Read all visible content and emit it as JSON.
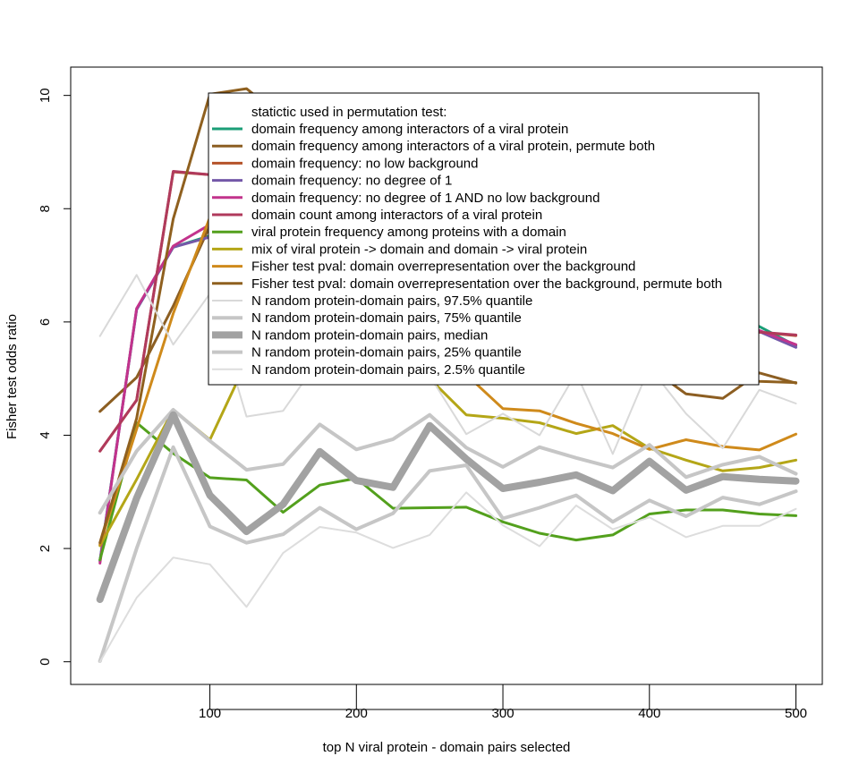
{
  "chart_data": {
    "type": "line",
    "title": "",
    "xlabel": "top N viral protein - domain pairs selected",
    "ylabel": "Fisher test odds ratio",
    "xlim": [
      5,
      518
    ],
    "ylim": [
      -0.4,
      10.5
    ],
    "xticks": [
      100,
      200,
      300,
      400,
      500
    ],
    "xtick_labels": [
      "100",
      "200",
      "300",
      "400",
      "500"
    ],
    "yticks": [
      0,
      2,
      4,
      6,
      8,
      10
    ],
    "ytick_labels": [
      "0",
      "2",
      "4",
      "6",
      "8",
      "10"
    ],
    "grid": false,
    "legend": {
      "placement": "top",
      "title": "statictic used in permutation test:"
    },
    "x": [
      25,
      50,
      75,
      100,
      125,
      150,
      175,
      200,
      225,
      250,
      275,
      300,
      325,
      350,
      375,
      400,
      425,
      450,
      475,
      500
    ],
    "series": [
      {
        "name": "domain frequency among interactors of a viral protein",
        "color": "#1b9e77",
        "width": 3,
        "values": [
          1.78,
          6.22,
          7.32,
          7.52,
          7.5,
          7.2,
          7.1,
          7.0,
          6.9,
          6.85,
          6.8,
          6.7,
          6.6,
          6.5,
          6.4,
          6.3,
          6.2,
          6.05,
          5.92,
          5.58
        ]
      },
      {
        "name": "domain frequency among interactors of a viral protein, permute both",
        "color": "#8c5e22",
        "width": 3,
        "values": [
          4.42,
          5.02,
          6.28,
          7.7,
          7.5,
          7.2,
          7.0,
          6.8,
          6.6,
          6.4,
          6.2,
          6.0,
          5.8,
          5.6,
          5.4,
          5.2,
          4.73,
          4.65,
          5.1,
          4.92
        ]
      },
      {
        "name": "domain frequency: no low background",
        "color": "#b5532a",
        "width": 3,
        "values": [
          3.72,
          4.62,
          8.65,
          8.6,
          8.5,
          8.3,
          8.1,
          7.9,
          7.7,
          7.5,
          7.3,
          7.1,
          6.9,
          6.7,
          6.5,
          6.3,
          6.1,
          5.9,
          5.82,
          5.76
        ]
      },
      {
        "name": "domain frequency: no degree of 1",
        "color": "#7458a8",
        "width": 3,
        "values": [
          1.78,
          6.22,
          7.32,
          7.5,
          7.4,
          7.2,
          7.1,
          7.0,
          6.9,
          6.8,
          6.7,
          6.6,
          6.5,
          6.4,
          6.3,
          6.2,
          6.05,
          5.92,
          5.83,
          5.55
        ]
      },
      {
        "name": "domain frequency: no degree of 1 AND no low background",
        "color": "#c2338c",
        "width": 3,
        "values": [
          1.74,
          6.24,
          7.34,
          7.72,
          7.6,
          7.4,
          7.2,
          7.0,
          6.9,
          6.8,
          6.7,
          6.6,
          6.5,
          6.4,
          6.3,
          6.2,
          6.1,
          6.0,
          5.85,
          5.6
        ]
      },
      {
        "name": "domain count among interactors of a viral protein",
        "color": "#b03a5c",
        "width": 3,
        "values": [
          3.72,
          4.62,
          8.66,
          8.6,
          8.5,
          8.3,
          8.1,
          7.9,
          7.7,
          7.5,
          7.3,
          7.1,
          6.9,
          6.7,
          6.5,
          6.3,
          6.1,
          5.9,
          5.82,
          5.77
        ]
      },
      {
        "name": "viral protein frequency among proteins with a domain",
        "color": "#53a01d",
        "width": 3,
        "values": [
          1.8,
          4.22,
          3.68,
          3.25,
          3.21,
          2.64,
          3.12,
          3.24,
          2.71,
          2.72,
          2.73,
          2.47,
          2.27,
          2.15,
          2.24,
          2.61,
          2.68,
          2.68,
          2.61,
          2.58
        ]
      },
      {
        "name": "mix of viral protein -> domain and domain -> viral protein",
        "color": "#b4a617",
        "width": 3,
        "values": [
          2.05,
          3.22,
          4.45,
          3.92,
          5.3,
          5.6,
          5.7,
          5.8,
          5.5,
          5.0,
          4.36,
          4.3,
          4.22,
          4.03,
          4.17,
          3.77,
          3.56,
          3.37,
          3.43,
          3.56
        ]
      },
      {
        "name": "Fisher test pval: domain overrepresentation over the background",
        "color": "#cf8a1b",
        "width": 3,
        "values": [
          2.07,
          4.11,
          6.15,
          7.85,
          7.6,
          7.4,
          7.2,
          7.0,
          6.6,
          5.3,
          5.07,
          4.47,
          4.43,
          4.21,
          4.03,
          3.75,
          3.92,
          3.8,
          3.74,
          4.02
        ]
      },
      {
        "name": "Fisher test pval: domain overrepresentation over the background, permute both",
        "color": "#8f601f",
        "width": 3,
        "values": [
          2.1,
          4.3,
          7.82,
          10.02,
          10.12,
          9.6,
          9.2,
          8.8,
          8.4,
          8.0,
          7.6,
          7.2,
          6.8,
          6.4,
          6.0,
          5.6,
          5.2,
          5.0,
          4.95,
          4.93
        ]
      },
      {
        "name": "N random protein-domain pairs, 97.5% quantile",
        "color": "#d9d9d9",
        "width": 2,
        "values": [
          5.75,
          6.83,
          5.6,
          6.5,
          4.33,
          4.43,
          5.35,
          5.5,
          5.2,
          5.05,
          4.02,
          4.38,
          4.0,
          5.1,
          3.67,
          5.2,
          4.38,
          3.77,
          4.8,
          4.56
        ]
      },
      {
        "name": "N random protein-domain pairs, 75% quantile",
        "color": "#c6c6c6",
        "width": 4,
        "values": [
          2.63,
          3.72,
          4.45,
          3.9,
          3.39,
          3.49,
          4.19,
          3.75,
          3.93,
          4.36,
          3.78,
          3.44,
          3.79,
          3.6,
          3.43,
          3.83,
          3.26,
          3.48,
          3.62,
          3.32
        ]
      },
      {
        "name": "N random protein-domain pairs, median",
        "color": "#a2a2a2",
        "width": 8,
        "values": [
          1.1,
          2.89,
          4.36,
          2.94,
          2.3,
          2.78,
          3.71,
          3.2,
          3.08,
          4.17,
          3.58,
          3.06,
          3.17,
          3.3,
          3.02,
          3.54,
          3.03,
          3.27,
          3.22,
          3.19
        ]
      },
      {
        "name": "N random protein-domain pairs, 25% quantile",
        "color": "#c6c6c6",
        "width": 4,
        "values": [
          0.01,
          2.0,
          3.79,
          2.39,
          2.1,
          2.25,
          2.72,
          2.34,
          2.62,
          3.37,
          3.47,
          2.53,
          2.72,
          2.94,
          2.47,
          2.85,
          2.57,
          2.9,
          2.78,
          3.01
        ]
      },
      {
        "name": "N random protein-domain pairs, 2.5% quantile",
        "color": "#dddddd",
        "width": 2,
        "values": [
          0.0,
          1.13,
          1.84,
          1.72,
          0.97,
          1.92,
          2.38,
          2.28,
          2.01,
          2.24,
          2.99,
          2.41,
          2.04,
          2.76,
          2.34,
          2.55,
          2.2,
          2.4,
          2.4,
          2.7
        ]
      }
    ]
  }
}
